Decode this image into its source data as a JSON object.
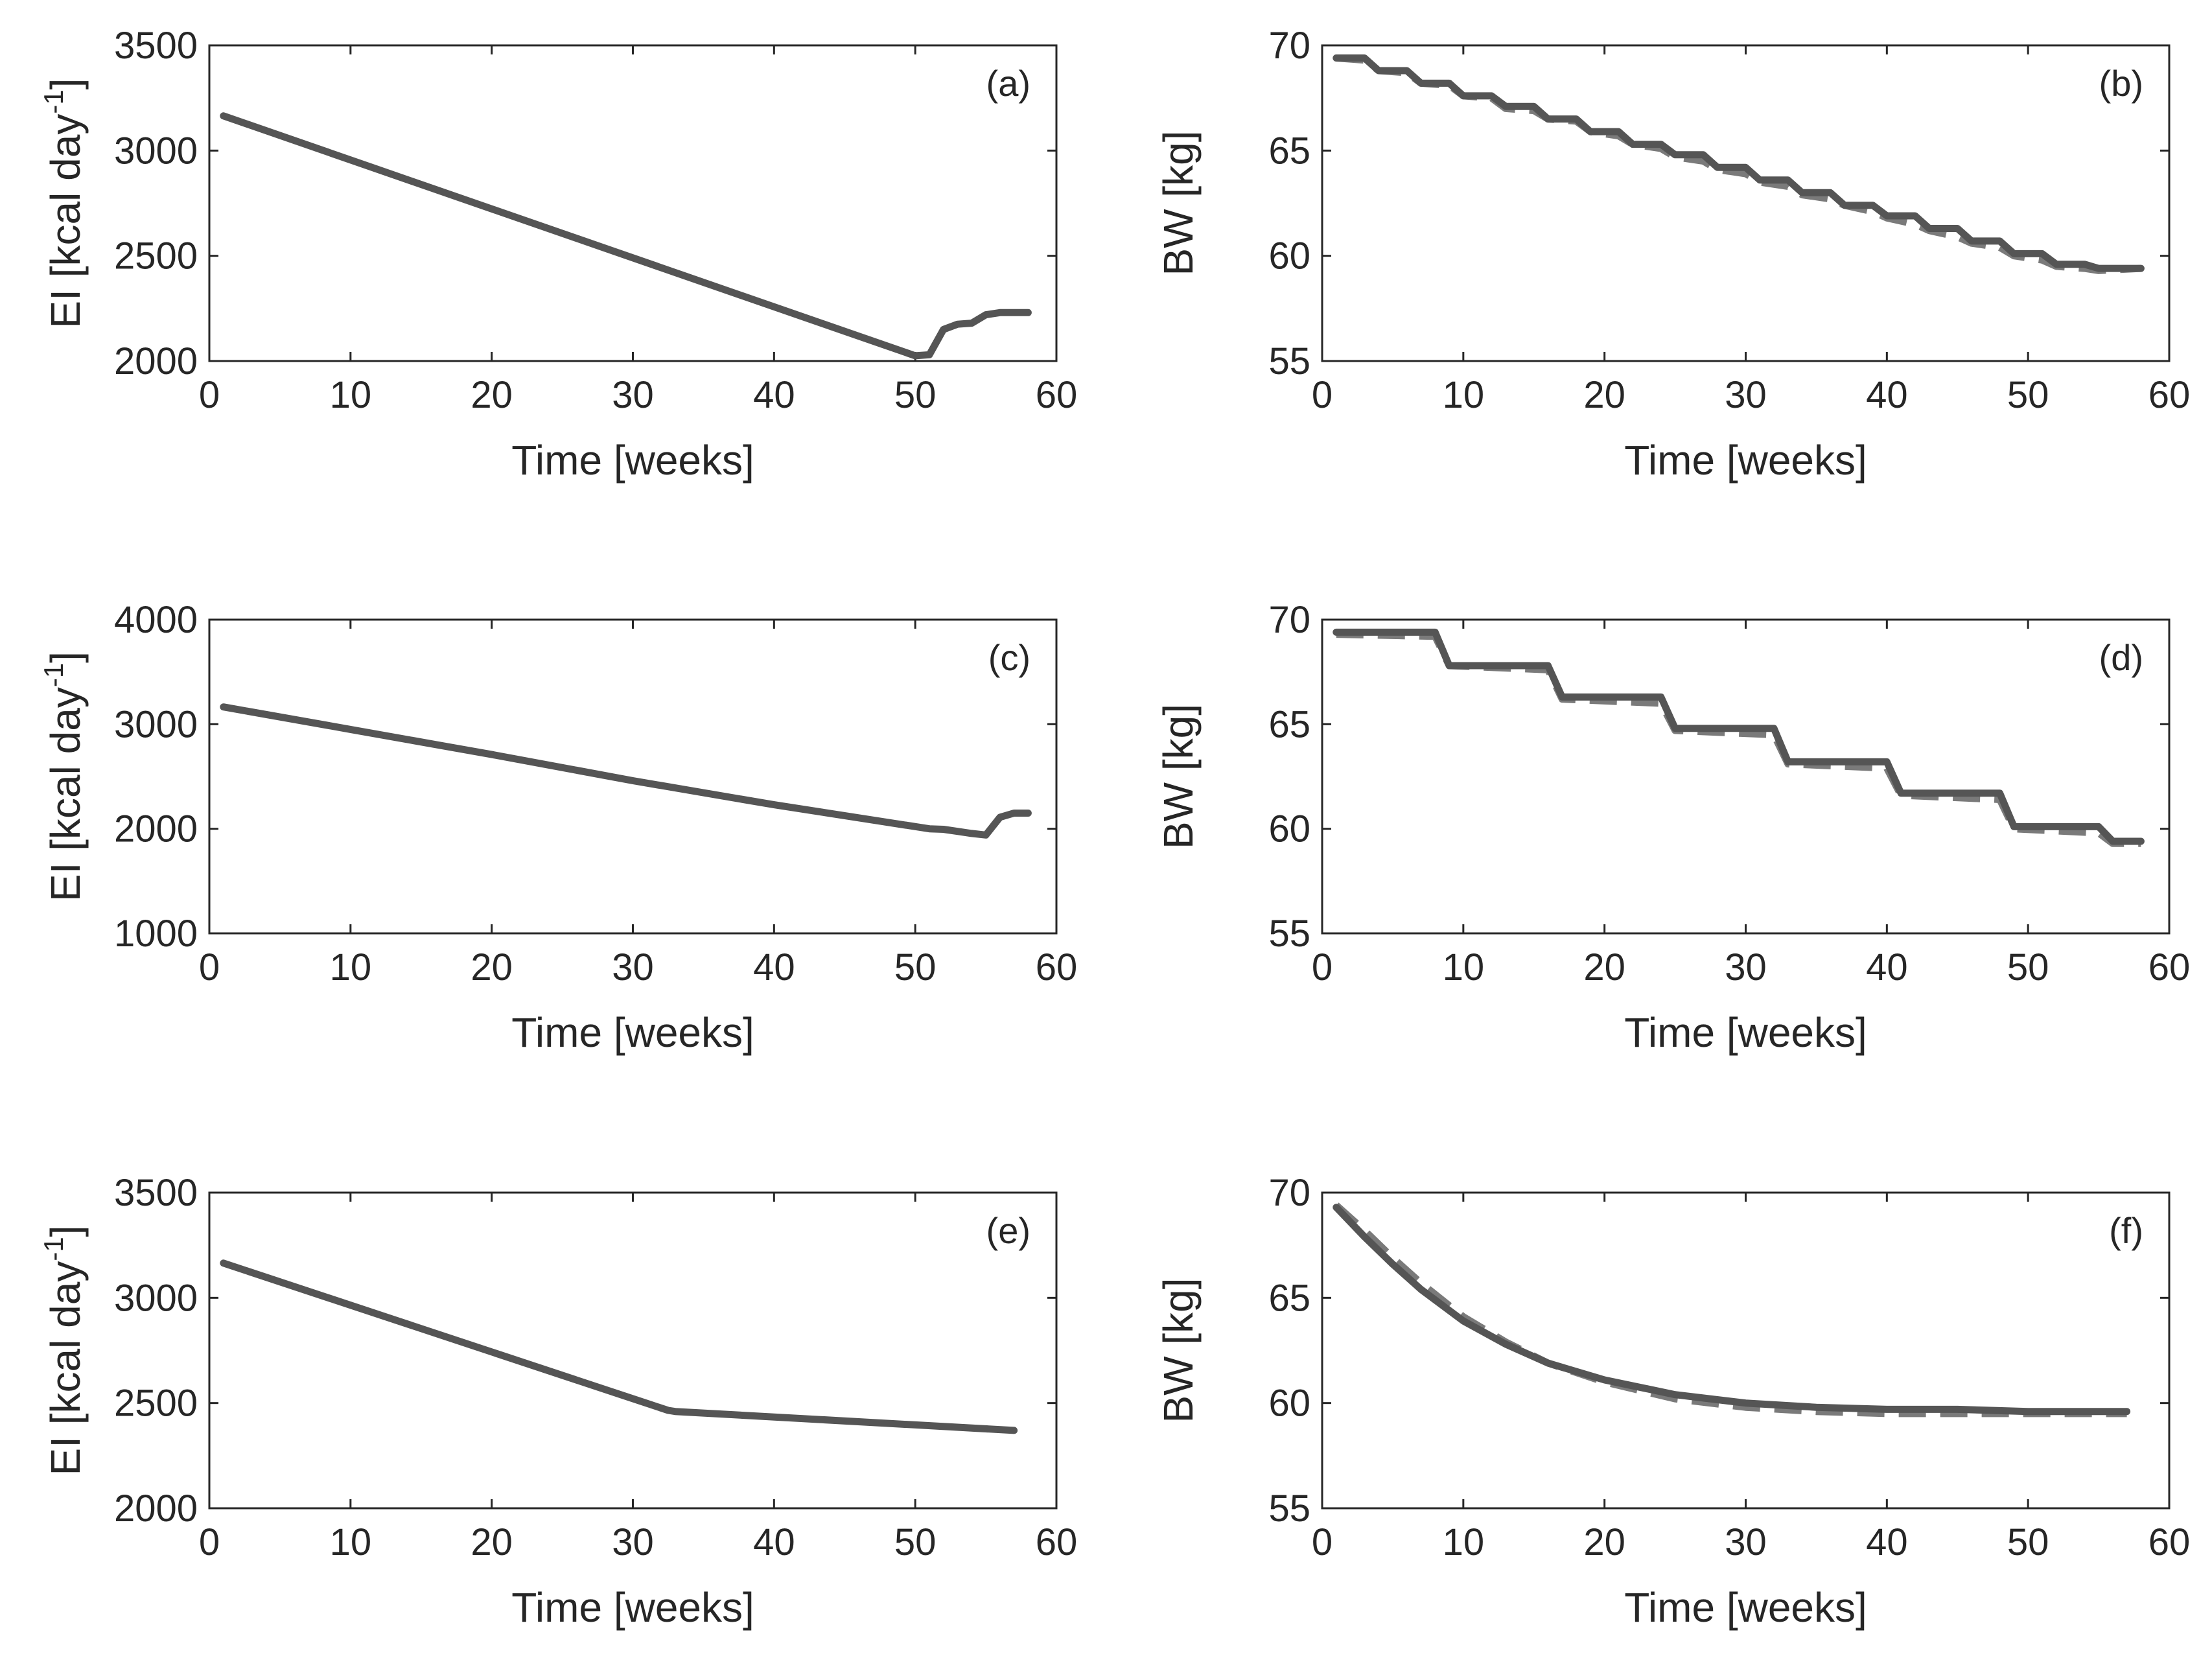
{
  "chart_data": [
    {
      "panel": "(a)",
      "type": "line",
      "xlabel": "Time [weeks]",
      "ylabel": "EI [kcal day",
      "ylabel_superscript": "-1",
      "ylabel_suffix": "]",
      "xlim": [
        0,
        60
      ],
      "ylim": [
        2000,
        3500
      ],
      "xticks": [
        0,
        10,
        20,
        30,
        40,
        50,
        60
      ],
      "yticks": [
        2000,
        2500,
        3000,
        3500
      ],
      "series": [
        {
          "name": "solid",
          "style": "solid",
          "x": [
            1,
            50,
            51,
            52,
            53,
            54,
            55,
            56,
            57,
            58
          ],
          "y": [
            3165,
            2025,
            2030,
            2150,
            2175,
            2180,
            2220,
            2230,
            2230,
            2230
          ]
        }
      ]
    },
    {
      "panel": "(b)",
      "type": "line",
      "xlabel": "Time [weeks]",
      "ylabel": "BW [kg]",
      "xlim": [
        0,
        60
      ],
      "ylim": [
        55,
        70
      ],
      "xticks": [
        0,
        10,
        20,
        30,
        40,
        50,
        60
      ],
      "yticks": [
        55,
        60,
        65,
        70
      ],
      "series": [
        {
          "name": "solid",
          "style": "solid",
          "x": [
            1,
            3,
            4,
            6,
            7,
            9,
            10,
            12,
            13,
            15,
            16,
            18,
            19,
            21,
            22,
            24,
            25,
            27,
            28,
            30,
            31,
            33,
            34,
            36,
            37,
            39,
            40,
            42,
            43,
            45,
            46,
            48,
            49,
            51,
            52,
            54,
            55,
            58
          ],
          "y": [
            69.4,
            69.4,
            68.8,
            68.8,
            68.2,
            68.2,
            67.6,
            67.6,
            67.1,
            67.1,
            66.5,
            66.5,
            65.9,
            65.9,
            65.3,
            65.3,
            64.8,
            64.8,
            64.2,
            64.2,
            63.6,
            63.6,
            63.0,
            63.0,
            62.4,
            62.4,
            61.9,
            61.9,
            61.3,
            61.3,
            60.7,
            60.7,
            60.1,
            60.1,
            59.6,
            59.6,
            59.4,
            59.4
          ]
        },
        {
          "name": "dashed",
          "style": "dashed",
          "x": [
            1,
            3,
            4,
            6,
            7,
            9,
            10,
            12,
            13,
            15,
            16,
            18,
            19,
            21,
            22,
            24,
            25,
            27,
            28,
            30,
            31,
            33,
            34,
            36,
            37,
            39,
            40,
            42,
            43,
            45,
            46,
            48,
            49,
            51,
            52,
            54,
            55,
            58
          ],
          "y": [
            69.4,
            69.3,
            68.8,
            68.7,
            68.2,
            68.1,
            67.6,
            67.5,
            67.0,
            66.9,
            66.5,
            66.4,
            65.9,
            65.7,
            65.3,
            65.1,
            64.7,
            64.5,
            64.1,
            63.9,
            63.5,
            63.3,
            62.9,
            62.7,
            62.4,
            62.1,
            61.8,
            61.5,
            61.2,
            60.9,
            60.6,
            60.4,
            60.0,
            59.8,
            59.5,
            59.4,
            59.3,
            59.4
          ]
        }
      ]
    },
    {
      "panel": "(c)",
      "type": "line",
      "xlabel": "Time [weeks]",
      "ylabel": "EI [kcal day",
      "ylabel_superscript": "-1",
      "ylabel_suffix": "]",
      "xlim": [
        0,
        60
      ],
      "ylim": [
        1000,
        4000
      ],
      "xticks": [
        0,
        10,
        20,
        30,
        40,
        50,
        60
      ],
      "yticks": [
        1000,
        2000,
        3000,
        4000
      ],
      "series": [
        {
          "name": "solid",
          "style": "solid",
          "x": [
            1,
            10,
            20,
            30,
            40,
            51,
            52,
            53,
            54,
            55,
            56,
            57,
            58
          ],
          "y": [
            3165,
            2950,
            2710,
            2460,
            2230,
            2000,
            1995,
            1975,
            1955,
            1940,
            2110,
            2150,
            2150
          ]
        }
      ]
    },
    {
      "panel": "(d)",
      "type": "line",
      "xlabel": "Time [weeks]",
      "ylabel": "BW [kg]",
      "xlim": [
        0,
        60
      ],
      "ylim": [
        55,
        70
      ],
      "xticks": [
        0,
        10,
        20,
        30,
        40,
        50,
        60
      ],
      "yticks": [
        55,
        60,
        65,
        70
      ],
      "series": [
        {
          "name": "solid",
          "style": "solid",
          "x": [
            1,
            8,
            9,
            16,
            17,
            24,
            25,
            32,
            33,
            40,
            41,
            48,
            49,
            55,
            56,
            58
          ],
          "y": [
            69.4,
            69.4,
            67.8,
            67.8,
            66.3,
            66.3,
            64.8,
            64.8,
            63.2,
            63.2,
            61.7,
            61.7,
            60.1,
            60.1,
            59.4,
            59.4
          ]
        },
        {
          "name": "dashed",
          "style": "dashed",
          "x": [
            1,
            8,
            9,
            16,
            17,
            24,
            25,
            32,
            33,
            40,
            41,
            48,
            49,
            55,
            56,
            58
          ],
          "y": [
            69.3,
            69.2,
            67.8,
            67.6,
            66.2,
            66.0,
            64.7,
            64.5,
            63.1,
            62.9,
            61.6,
            61.4,
            60.0,
            59.8,
            59.3,
            59.3
          ]
        }
      ]
    },
    {
      "panel": "(e)",
      "type": "line",
      "xlabel": "Time [weeks]",
      "ylabel": "EI [kcal day",
      "ylabel_superscript": "-1",
      "ylabel_suffix": "]",
      "xlim": [
        0,
        60
      ],
      "ylim": [
        2000,
        3500
      ],
      "xticks": [
        0,
        10,
        20,
        30,
        40,
        50,
        60
      ],
      "yticks": [
        2000,
        2500,
        3000,
        3500
      ],
      "series": [
        {
          "name": "solid",
          "style": "solid",
          "x": [
            1,
            32.5,
            33,
            57
          ],
          "y": [
            3165,
            2465,
            2460,
            2370
          ]
        }
      ]
    },
    {
      "panel": "(f)",
      "type": "line",
      "xlabel": "Time [weeks]",
      "ylabel": "BW [kg]",
      "xlim": [
        0,
        60
      ],
      "ylim": [
        55,
        70
      ],
      "xticks": [
        0,
        10,
        20,
        30,
        40,
        50,
        60
      ],
      "yticks": [
        55,
        60,
        65,
        70
      ],
      "series": [
        {
          "name": "solid",
          "style": "solid",
          "x": [
            1,
            3,
            5,
            7,
            10,
            13,
            16,
            20,
            25,
            30,
            35,
            40,
            45,
            50,
            57
          ],
          "y": [
            69.3,
            67.9,
            66.6,
            65.4,
            63.9,
            62.8,
            61.9,
            61.1,
            60.4,
            60.0,
            59.8,
            59.7,
            59.7,
            59.6,
            59.6
          ]
        },
        {
          "name": "dashed",
          "style": "dashed",
          "x": [
            1,
            3,
            5,
            7,
            10,
            13,
            16,
            20,
            25,
            30,
            35,
            40,
            45,
            50,
            57
          ],
          "y": [
            69.4,
            68.2,
            66.9,
            65.7,
            64.1,
            62.9,
            61.9,
            61.0,
            60.2,
            59.8,
            59.6,
            59.5,
            59.5,
            59.5,
            59.5
          ]
        }
      ]
    }
  ]
}
